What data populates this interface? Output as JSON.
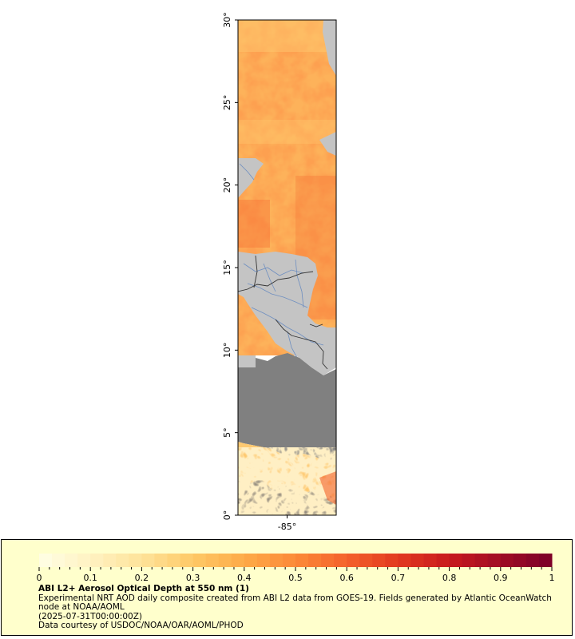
{
  "map": {
    "lat_ticks": [
      {
        "value": 0,
        "label": "0°"
      },
      {
        "value": 5,
        "label": "5°"
      },
      {
        "value": 10,
        "label": "10°"
      },
      {
        "value": 15,
        "label": "15°"
      },
      {
        "value": 20,
        "label": "20°"
      },
      {
        "value": 25,
        "label": "25°"
      },
      {
        "value": 30,
        "label": "30°"
      }
    ],
    "lon_ticks": [
      {
        "value": -85,
        "label": "-85°"
      }
    ],
    "lat_range": [
      0,
      30
    ],
    "lon_range": [
      -88,
      -82
    ],
    "colors": {
      "land": "#c4c4c4",
      "no_data": "#808080",
      "borders": "#333333",
      "rivers": "#6f8fc0"
    }
  },
  "colorbar": {
    "ticks": [
      "0",
      "0.1",
      "0.2",
      "0.3",
      "0.4",
      "0.5",
      "0.6",
      "0.7",
      "0.8",
      "0.9",
      "1"
    ],
    "range": [
      0,
      1
    ],
    "colors": [
      "#ffffe5",
      "#fff2c2",
      "#fee39a",
      "#fec966",
      "#fdaa48",
      "#fc8a38",
      "#f4622b",
      "#e23a20",
      "#c81a1e",
      "#a00d25",
      "#7a0028"
    ]
  },
  "legend": {
    "title": "ABI L2+ Aerosol Optical Depth at 550 nm (1)",
    "line1": "Experimental NRT AOD daily composite created from ABI L2 data from GOES-19. Fields generated by Atlantic OceanWatch node at NOAA/AOML",
    "line2": "(2025-07-31T00:00:00Z)",
    "line3": "Data courtesy of USDOC/NOAA/OAR/AOML/PHOD"
  }
}
